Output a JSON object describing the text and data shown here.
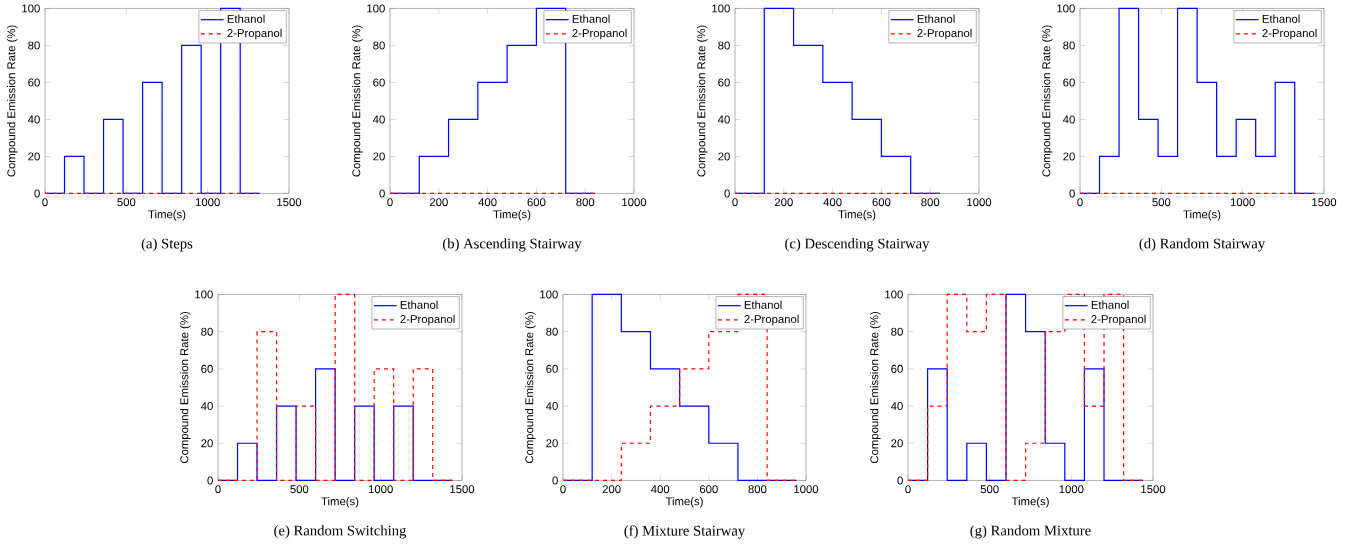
{
  "chart_data": [
    {
      "type": "step",
      "title": "(a) Steps",
      "xlabel": "Time(s)",
      "ylabel": "Compound Emission Rate (%)",
      "xlim": [
        0,
        1500
      ],
      "xticks": [
        0,
        500,
        1000,
        1500
      ],
      "ylim": [
        0,
        100
      ],
      "yticks": [
        0,
        20,
        40,
        60,
        80,
        100
      ],
      "legend": "top right",
      "x": [
        0,
        120,
        240,
        360,
        480,
        600,
        720,
        840,
        960,
        1080,
        1200,
        1320
      ],
      "series": [
        {
          "name": "Ethanol",
          "color": "#0000ff",
          "line_style": "solid",
          "values": [
            0,
            20,
            0,
            40,
            0,
            60,
            0,
            80,
            0,
            100,
            0,
            0
          ]
        },
        {
          "name": "2-Propanol",
          "color": "#ff0000",
          "line_style": "dashed",
          "values": [
            0,
            0,
            0,
            0,
            0,
            0,
            0,
            0,
            0,
            0,
            0,
            0
          ]
        }
      ]
    },
    {
      "type": "step",
      "title": "(b) Ascending Stairway",
      "xlabel": "Time(s)",
      "ylabel": "Compound Emission Rate (%)",
      "xlim": [
        0,
        1000
      ],
      "xticks": [
        0,
        200,
        400,
        600,
        800,
        1000
      ],
      "ylim": [
        0,
        100
      ],
      "yticks": [
        0,
        20,
        40,
        60,
        80,
        100
      ],
      "legend": "top right",
      "x": [
        0,
        120,
        240,
        360,
        480,
        600,
        720,
        840
      ],
      "series": [
        {
          "name": "Ethanol",
          "color": "#0000ff",
          "line_style": "solid",
          "values": [
            0,
            20,
            40,
            60,
            80,
            100,
            0,
            0
          ]
        },
        {
          "name": "2-Propanol",
          "color": "#ff0000",
          "line_style": "dashed",
          "values": [
            0,
            0,
            0,
            0,
            0,
            0,
            0,
            0
          ]
        }
      ]
    },
    {
      "type": "step",
      "title": "(c) Descending Stairway",
      "xlabel": "Time(s)",
      "ylabel": "Compound Emission Rate (%)",
      "xlim": [
        0,
        1000
      ],
      "xticks": [
        0,
        200,
        400,
        600,
        800,
        1000
      ],
      "ylim": [
        0,
        100
      ],
      "yticks": [
        0,
        20,
        40,
        60,
        80,
        100
      ],
      "legend": "top right",
      "x": [
        0,
        120,
        240,
        360,
        480,
        600,
        720,
        840
      ],
      "series": [
        {
          "name": "Ethanol",
          "color": "#0000ff",
          "line_style": "solid",
          "values": [
            0,
            100,
            80,
            60,
            40,
            20,
            0,
            0
          ]
        },
        {
          "name": "2-Propanol",
          "color": "#ff0000",
          "line_style": "dashed",
          "values": [
            0,
            0,
            0,
            0,
            0,
            0,
            0,
            0
          ]
        }
      ]
    },
    {
      "type": "step",
      "title": "(d) Random Stairway",
      "xlabel": "Time(s)",
      "ylabel": "Compound Emission Rate (%)",
      "xlim": [
        0,
        1500
      ],
      "xticks": [
        0,
        500,
        1000,
        1500
      ],
      "ylim": [
        0,
        100
      ],
      "yticks": [
        0,
        20,
        40,
        60,
        80,
        100
      ],
      "legend": "top right",
      "x": [
        0,
        120,
        240,
        360,
        480,
        600,
        720,
        840,
        960,
        1080,
        1200,
        1320,
        1440
      ],
      "series": [
        {
          "name": "Ethanol",
          "color": "#0000ff",
          "line_style": "solid",
          "values": [
            0,
            20,
            100,
            40,
            20,
            100,
            60,
            20,
            40,
            20,
            60,
            0,
            0
          ]
        },
        {
          "name": "2-Propanol",
          "color": "#ff0000",
          "line_style": "dashed",
          "values": [
            0,
            0,
            0,
            0,
            0,
            0,
            0,
            0,
            0,
            0,
            0,
            0,
            0
          ]
        }
      ]
    },
    {
      "type": "step",
      "title": "(e) Random Switching",
      "xlabel": "Time(s)",
      "ylabel": "Compound Emission Rate (%)",
      "xlim": [
        0,
        1500
      ],
      "xticks": [
        0,
        500,
        1000,
        1500
      ],
      "ylim": [
        0,
        100
      ],
      "yticks": [
        0,
        20,
        40,
        60,
        80,
        100
      ],
      "legend": "top right",
      "x": [
        0,
        120,
        240,
        360,
        480,
        600,
        720,
        840,
        960,
        1080,
        1200,
        1320,
        1440
      ],
      "series": [
        {
          "name": "Ethanol",
          "color": "#0000ff",
          "line_style": "solid",
          "values": [
            0,
            20,
            0,
            40,
            0,
            60,
            0,
            40,
            0,
            40,
            0,
            0,
            0
          ]
        },
        {
          "name": "2-Propanol",
          "color": "#ff0000",
          "line_style": "dashed",
          "values": [
            0,
            0,
            80,
            0,
            40,
            0,
            100,
            0,
            60,
            0,
            60,
            0,
            0
          ]
        }
      ]
    },
    {
      "type": "step",
      "title": "(f) Mixture Stairway",
      "xlabel": "Time(s)",
      "ylabel": "Compound Emission Rate (%)",
      "xlim": [
        0,
        1000
      ],
      "xticks": [
        0,
        200,
        400,
        600,
        800,
        1000
      ],
      "ylim": [
        0,
        100
      ],
      "yticks": [
        0,
        20,
        40,
        60,
        80,
        100
      ],
      "legend": "top right",
      "x": [
        0,
        120,
        240,
        360,
        480,
        600,
        720,
        840,
        960
      ],
      "series": [
        {
          "name": "Ethanol",
          "color": "#0000ff",
          "line_style": "solid",
          "values": [
            0,
            100,
            80,
            60,
            40,
            20,
            0,
            0,
            0
          ]
        },
        {
          "name": "2-Propanol",
          "color": "#ff0000",
          "line_style": "dashed",
          "values": [
            0,
            0,
            20,
            40,
            60,
            80,
            100,
            0,
            0
          ]
        }
      ]
    },
    {
      "type": "step",
      "title": "(g) Random Mixture",
      "xlabel": "Time(s)",
      "ylabel": "Compound Emission Rate (%)",
      "xlim": [
        0,
        1500
      ],
      "xticks": [
        0,
        500,
        1000,
        1500
      ],
      "ylim": [
        0,
        100
      ],
      "yticks": [
        0,
        20,
        40,
        60,
        80,
        100
      ],
      "legend": "top right",
      "x": [
        0,
        120,
        240,
        360,
        480,
        600,
        720,
        840,
        960,
        1080,
        1200,
        1320,
        1440
      ],
      "series": [
        {
          "name": "Ethanol",
          "color": "#0000ff",
          "line_style": "solid",
          "values": [
            0,
            60,
            0,
            20,
            0,
            100,
            80,
            20,
            0,
            60,
            0,
            0,
            0
          ]
        },
        {
          "name": "2-Propanol",
          "color": "#ff0000",
          "line_style": "dashed",
          "values": [
            0,
            40,
            100,
            80,
            100,
            0,
            20,
            80,
            100,
            40,
            100,
            0,
            0
          ]
        }
      ]
    }
  ]
}
